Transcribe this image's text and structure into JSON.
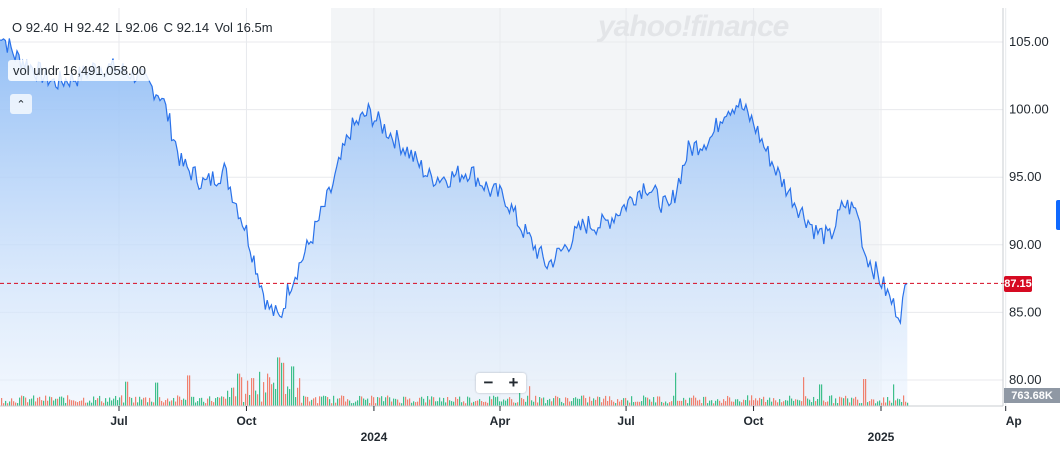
{
  "watermark": "yahoo!finance",
  "ohlc": {
    "open": "O 92.40",
    "high": "H 92.42",
    "low": "L 92.06",
    "close": "C 92.14",
    "volume": "Vol 16.5m"
  },
  "vol_indicator": {
    "label": "vol undr",
    "value": "16,491,058.00"
  },
  "collapse_button": {
    "icon": "chevron-up-icon",
    "glyph": "⌃"
  },
  "zoom": {
    "minus": "−",
    "plus": "+"
  },
  "current_price": "87.15",
  "current_volume": "763.68K",
  "colors": {
    "line": "#2a72ea",
    "area_top": "#8fbcf5",
    "area_bottom": "#ebf3fd",
    "highlight_band": "#f3f5f7",
    "price_line": "#d60a22",
    "vol_up": "#3cbf8a",
    "vol_down": "#f0806e",
    "grid": "#e8eaed"
  },
  "chart_data": {
    "type": "area",
    "title": "",
    "xlabel": "",
    "ylabel": "",
    "y_ticks": [
      "105.00",
      "100.00",
      "95.00",
      "90.00",
      "85.00",
      "80.00"
    ],
    "ylim": [
      78,
      108
    ],
    "x_ticks": [
      {
        "label": "Jul",
        "date": "2023-07-01"
      },
      {
        "label": "Oct",
        "date": "2023-10-01"
      },
      {
        "label": "2024",
        "date": "2024-01-01"
      },
      {
        "label": "Apr",
        "date": "2024-04-01"
      },
      {
        "label": "Jul",
        "date": "2024-07-01"
      },
      {
        "label": "Oct",
        "date": "2024-10-01"
      },
      {
        "label": "2025",
        "date": "2025-01-01"
      },
      {
        "label": "Ap",
        "date": "2025-04-01"
      }
    ],
    "grid": true,
    "series": [
      {
        "values": [
          [
            "2023-04-03",
            106.2
          ],
          [
            "2023-04-17",
            104.0
          ],
          [
            "2023-05-01",
            103.0
          ],
          [
            "2023-05-15",
            102.0
          ],
          [
            "2023-06-01",
            102.4
          ],
          [
            "2023-06-15",
            103.2
          ],
          [
            "2023-07-01",
            103.0
          ],
          [
            "2023-07-15",
            102.5
          ],
          [
            "2023-08-01",
            101.0
          ],
          [
            "2023-08-15",
            96.0
          ],
          [
            "2023-09-01",
            94.5
          ],
          [
            "2023-09-15",
            95.5
          ],
          [
            "2023-10-01",
            91.0
          ],
          [
            "2023-10-09",
            88.0
          ],
          [
            "2023-10-16",
            85.5
          ],
          [
            "2023-10-25",
            84.5
          ],
          [
            "2023-11-01",
            87.0
          ],
          [
            "2023-11-15",
            90.0
          ],
          [
            "2023-12-01",
            94.0
          ],
          [
            "2023-12-15",
            98.5
          ],
          [
            "2023-12-28",
            99.8
          ],
          [
            "2024-01-10",
            98.5
          ],
          [
            "2024-01-25",
            97.0
          ],
          [
            "2024-02-10",
            95.0
          ],
          [
            "2024-02-25",
            95.0
          ],
          [
            "2024-03-10",
            95.5
          ],
          [
            "2024-03-25",
            94.0
          ],
          [
            "2024-04-05",
            93.5
          ],
          [
            "2024-04-15",
            91.5
          ],
          [
            "2024-04-25",
            90.0
          ],
          [
            "2024-05-05",
            88.5
          ],
          [
            "2024-05-15",
            89.5
          ],
          [
            "2024-06-01",
            91.5
          ],
          [
            "2024-06-15",
            91.5
          ],
          [
            "2024-07-01",
            93.0
          ],
          [
            "2024-07-15",
            94.5
          ],
          [
            "2024-08-01",
            92.5
          ],
          [
            "2024-08-15",
            97.0
          ],
          [
            "2024-09-01",
            98.0
          ],
          [
            "2024-09-10",
            100.0
          ],
          [
            "2024-09-20",
            100.5
          ],
          [
            "2024-10-01",
            99.0
          ],
          [
            "2024-10-10",
            97.0
          ],
          [
            "2024-10-20",
            95.0
          ],
          [
            "2024-11-01",
            93.0
          ],
          [
            "2024-11-15",
            91.0
          ],
          [
            "2024-11-25",
            90.5
          ],
          [
            "2024-12-05",
            93.0
          ],
          [
            "2024-12-15",
            92.5
          ],
          [
            "2024-12-20",
            89.5
          ],
          [
            "2024-12-31",
            87.5
          ],
          [
            "2025-01-10",
            85.5
          ],
          [
            "2025-01-15",
            85.0
          ],
          [
            "2025-01-20",
            87.15
          ]
        ]
      }
    ],
    "volume": {
      "ylim_max": 6,
      "values": [
        [
          "2023-07-06",
          2.7
        ],
        [
          "2023-07-28",
          2.6
        ],
        [
          "2023-08-20",
          3.4
        ],
        [
          "2023-09-25",
          3.6
        ],
        [
          "2023-10-05",
          3.1
        ],
        [
          "2023-10-10",
          3.8
        ],
        [
          "2023-10-16",
          3.6
        ],
        [
          "2023-10-24",
          5.4
        ],
        [
          "2023-10-27",
          4.8
        ],
        [
          "2023-11-03",
          4.4
        ],
        [
          "2024-04-15",
          2.6
        ],
        [
          "2024-04-22",
          2.2
        ],
        [
          "2024-08-05",
          3.7
        ],
        [
          "2024-11-06",
          3.2
        ],
        [
          "2024-11-18",
          2.4
        ],
        [
          "2024-12-20",
          3.0
        ],
        [
          "2025-01-10",
          2.4
        ]
      ]
    }
  }
}
